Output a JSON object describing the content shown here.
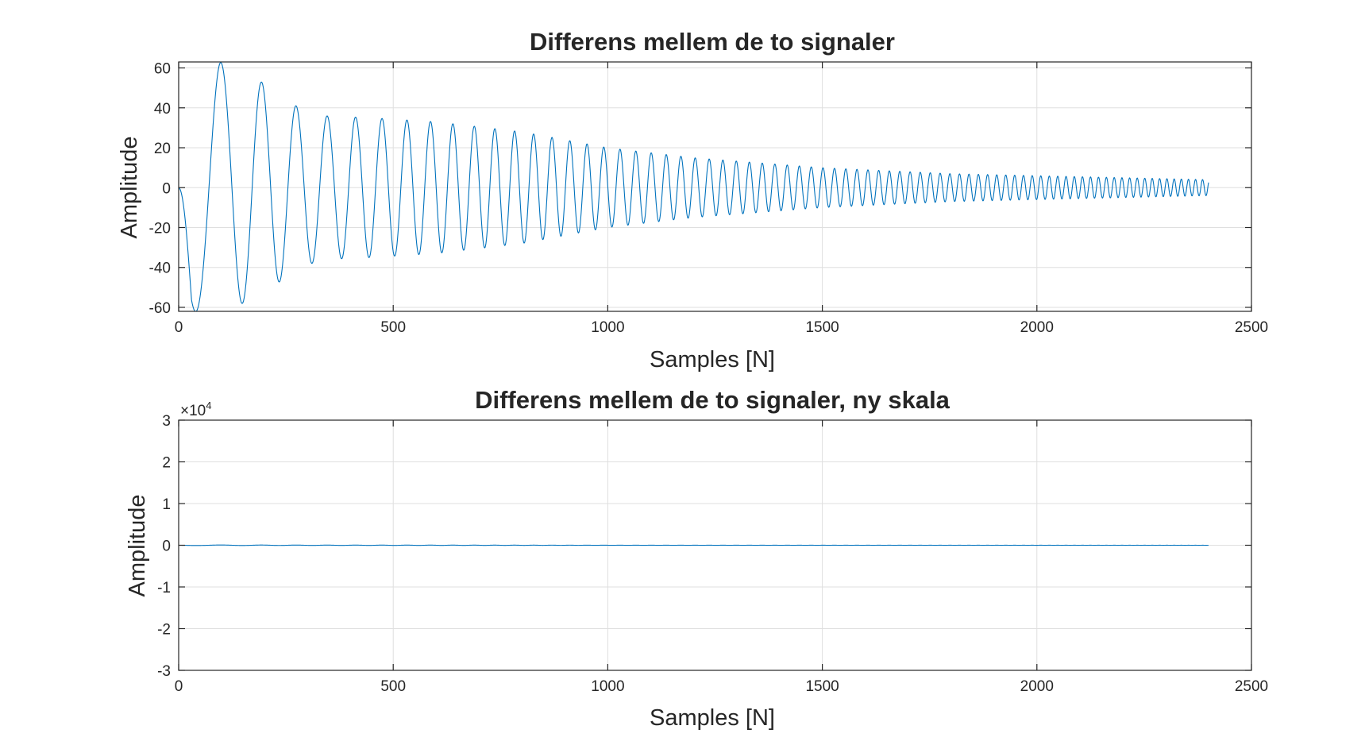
{
  "colors": {
    "line": "#0072BD",
    "axes": "#262626",
    "grid": "#dfdfdf",
    "background": "#ffffff"
  },
  "chart_data": [
    {
      "type": "line",
      "title": "Differens mellem de to signaler",
      "xlabel": "Samples [N]",
      "ylabel": "Amplitude",
      "xlim": [
        0,
        2500
      ],
      "ylim": [
        -62,
        63
      ],
      "xticks": [
        0,
        500,
        1000,
        1500,
        2000,
        2500
      ],
      "xticklabels": [
        "0",
        "500",
        "1000",
        "1500",
        "2000",
        "2500"
      ],
      "yticks": [
        -60,
        -40,
        -20,
        0,
        20,
        40,
        60
      ],
      "yticklabels": [
        "-60",
        "-40",
        "-20",
        "0",
        "20",
        "40",
        "60"
      ],
      "grid": true,
      "series": [
        {
          "description": "chirp-like oscillation, frequency increasing and amplitude decaying",
          "n_samples": 2400,
          "envelope": {
            "samples": [
              0,
              30,
              95,
              170,
              230,
              280,
              340,
              450,
              600,
              800,
              1000,
              1200,
              1500,
              1800,
              2000,
              2200,
              2400
            ],
            "amplitude": [
              2,
              62,
              63,
              56,
              48,
              40,
              36,
              35,
              33,
              28,
              20,
              15,
              10,
              7,
              6,
              5,
              4
            ]
          },
          "peaks": [
            {
              "x": 30,
              "y": -62
            },
            {
              "x": 95,
              "y": 63
            },
            {
              "x": 137,
              "y": -58
            },
            {
              "x": 170,
              "y": 53
            },
            {
              "x": 200,
              "y": -49
            },
            {
              "x": 226,
              "y": 46
            },
            {
              "x": 250,
              "y": -44
            },
            {
              "x": 270,
              "y": 41
            }
          ]
        }
      ]
    },
    {
      "type": "line",
      "title": "Differens mellem de to signaler, ny skala",
      "xlabel": "Samples [N]",
      "ylabel": "Amplitude",
      "xlim": [
        0,
        2500
      ],
      "ylim": [
        -30000,
        30000
      ],
      "xticks": [
        0,
        500,
        1000,
        1500,
        2000,
        2500
      ],
      "xticklabels": [
        "0",
        "500",
        "1000",
        "1500",
        "2000",
        "2500"
      ],
      "yticks": [
        -30000,
        -20000,
        -10000,
        0,
        10000,
        20000,
        30000
      ],
      "yticklabels": [
        "-3",
        "-2",
        "-1",
        "0",
        "1",
        "2",
        "3"
      ],
      "y_exponent_base": "×10",
      "y_exponent_power": "4",
      "grid": true,
      "series": [
        {
          "description": "same difference signal plotted on a much larger scale, appears flat at 0",
          "n_samples": 2400
        }
      ]
    }
  ]
}
